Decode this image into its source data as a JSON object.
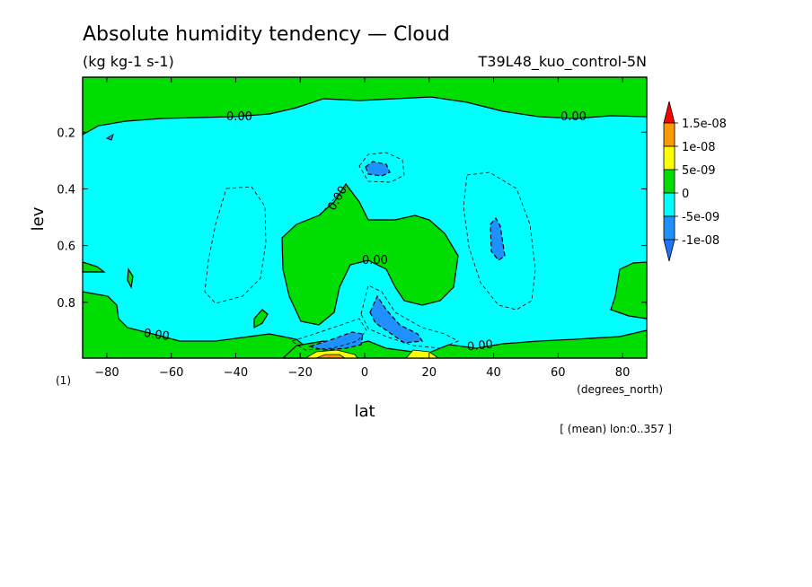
{
  "chart_data": {
    "type": "contour",
    "title": "Absolute humidity tendency — Cloud",
    "units": "(kg kg-1 s-1)",
    "run_label": "T39L48_kuo_control-5N",
    "xlabel": "lat",
    "x_units": "(degrees_north)",
    "ylabel": "lev",
    "y_units": "(1)",
    "footnote": "[ (mean) lon:0..357 ]",
    "xlim": [
      -87.5,
      87.5
    ],
    "ylim": [
      0.997,
      0.006
    ],
    "x_ticks": [
      -80,
      -60,
      -40,
      -20,
      0,
      20,
      40,
      60,
      80
    ],
    "x_tick_labels": [
      "−80",
      "−60",
      "−40",
      "−20",
      "0",
      "20",
      "40",
      "60",
      "80"
    ],
    "y_ticks": [
      0.2,
      0.4,
      0.6,
      0.8
    ],
    "y_tick_labels": [
      "0.2",
      "0.4",
      "0.6",
      "0.8"
    ],
    "colorbar": {
      "levels": [
        "1.5e-08",
        "1e-08",
        "5e-09",
        "0",
        "-5e-09",
        "-1e-08"
      ],
      "colors": [
        "#ff0000",
        "#ff9900",
        "#ffff00",
        "#00dd00",
        "#00ffff",
        "#1e90ff"
      ],
      "end_colors": {
        "top": "#ff0000",
        "bottom": "#1e74ff"
      }
    },
    "contour_labels": [
      "0.00",
      "0.00",
      "0.00",
      "0.00",
      "0.00",
      "0.00"
    ],
    "colors": {
      "positive_small": "#00dd00",
      "negative_small": "#00ffff",
      "negative_mid": "#1e90ff",
      "positive_mid": "#ffff00",
      "positive_high": "#ff9900"
    }
  }
}
